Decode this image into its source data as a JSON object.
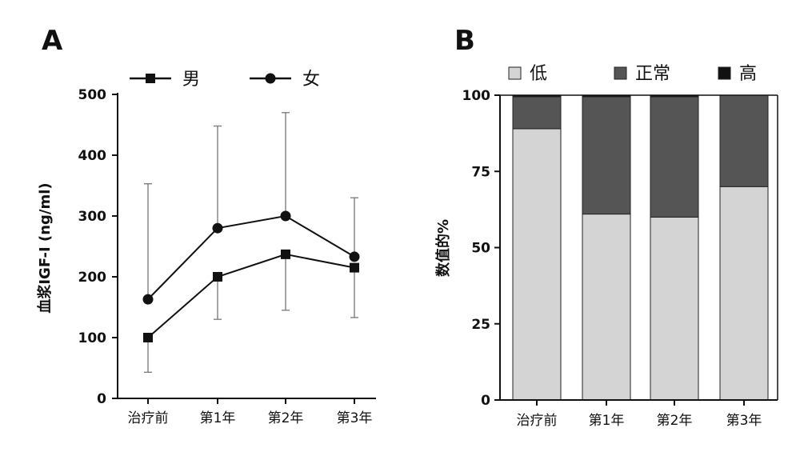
{
  "figure": {
    "panel_a_label": "A",
    "panel_b_label": "B"
  },
  "chart_data": [
    {
      "panel": "A",
      "type": "line",
      "title": "",
      "xlabel": "",
      "ylabel": "血浆IGF-I (ng/ml)",
      "categories": [
        "治疗前",
        "第1年",
        "第2年",
        "第3年"
      ],
      "ylim": [
        0,
        500
      ],
      "yticks": [
        0,
        100,
        200,
        300,
        400,
        500
      ],
      "legend_position": "top",
      "series": [
        {
          "name": "男",
          "marker": "square",
          "color": "#111111",
          "values": [
            100,
            200,
            237,
            215
          ],
          "err_low": [
            43,
            130,
            145,
            133
          ],
          "err_high": [
            100,
            200,
            237,
            215
          ]
        },
        {
          "name": "女",
          "marker": "circle",
          "color": "#111111",
          "values": [
            163,
            280,
            300,
            233
          ],
          "err_low": [
            163,
            280,
            300,
            233
          ],
          "err_high": [
            353,
            448,
            470,
            330
          ]
        }
      ]
    },
    {
      "panel": "B",
      "type": "bar",
      "stacked": true,
      "title": "",
      "xlabel": "",
      "ylabel": "数值的%",
      "categories": [
        "治疗前",
        "第1年",
        "第2年",
        "第3年"
      ],
      "ylim": [
        0,
        100
      ],
      "yticks": [
        0,
        25,
        50,
        75,
        100
      ],
      "legend_position": "top",
      "series": [
        {
          "name": "低",
          "color": "#d4d4d4",
          "values": [
            89,
            61,
            60,
            70
          ]
        },
        {
          "name": "正常",
          "color": "#555555",
          "values": [
            10.5,
            38.5,
            39.5,
            30
          ]
        },
        {
          "name": "高",
          "color": "#111111",
          "values": [
            0.5,
            0.5,
            0.5,
            0
          ]
        }
      ]
    }
  ]
}
